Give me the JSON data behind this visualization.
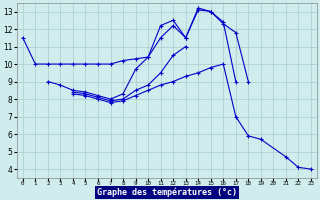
{
  "xlabel": "Graphe des températures (°c)",
  "background_color": "#d0ecec",
  "grid_color": "#a8cccc",
  "line_color": "#0000cc",
  "ylim": [
    3.5,
    13.5
  ],
  "xlim": [
    -0.5,
    23.5
  ],
  "yticks": [
    4,
    5,
    6,
    7,
    8,
    9,
    10,
    11,
    12,
    13
  ],
  "xticks": [
    0,
    1,
    2,
    3,
    4,
    5,
    6,
    7,
    8,
    9,
    10,
    11,
    12,
    13,
    14,
    15,
    16,
    17,
    18,
    19,
    20,
    21,
    22,
    23
  ],
  "series": [
    {
      "x": [
        0,
        1,
        2,
        3,
        4,
        5,
        6,
        7,
        8,
        9,
        10,
        11,
        12,
        13,
        14,
        15,
        16,
        17,
        18
      ],
      "y": [
        11.5,
        10.0,
        10.0,
        10.0,
        10.0,
        10.0,
        10.0,
        10.0,
        10.2,
        10.3,
        10.4,
        11.5,
        12.2,
        11.5,
        13.1,
        13.0,
        12.3,
        11.8,
        9.0
      ]
    },
    {
      "x": [
        2,
        3,
        4,
        5,
        6,
        7,
        8,
        9,
        10,
        11,
        12,
        13,
        14,
        15,
        16,
        17
      ],
      "y": [
        9.0,
        8.8,
        8.5,
        8.4,
        8.2,
        8.0,
        8.3,
        9.7,
        10.4,
        12.2,
        12.5,
        11.5,
        13.2,
        13.0,
        12.4,
        9.0
      ]
    },
    {
      "x": [
        4,
        5,
        6,
        7,
        8,
        9,
        10,
        11,
        12,
        13
      ],
      "y": [
        8.4,
        8.3,
        8.1,
        7.9,
        8.0,
        8.5,
        8.8,
        9.5,
        10.5,
        11.0
      ]
    },
    {
      "x": [
        4,
        5,
        6,
        7,
        8,
        9,
        10,
        11,
        12,
        13,
        14,
        15,
        16,
        17,
        18,
        19,
        21,
        22,
        23
      ],
      "y": [
        8.3,
        8.2,
        8.0,
        7.8,
        7.9,
        8.2,
        8.5,
        8.8,
        9.0,
        9.3,
        9.5,
        9.8,
        10.0,
        7.0,
        5.9,
        5.7,
        4.7,
        4.1,
        4.0
      ]
    }
  ]
}
